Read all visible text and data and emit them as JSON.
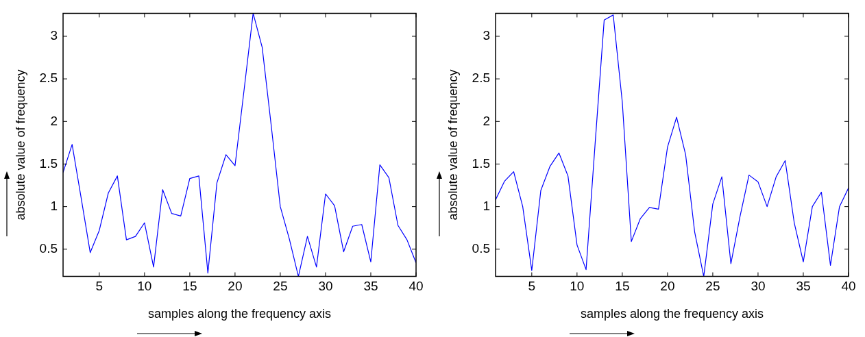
{
  "chart_data": [
    {
      "type": "line",
      "xlabel": "samples along the frequency axis",
      "ylabel": "absolute value of frequency",
      "x": [
        1,
        2,
        3,
        4,
        5,
        6,
        7,
        8,
        9,
        10,
        11,
        12,
        13,
        14,
        15,
        16,
        17,
        18,
        19,
        20,
        21,
        22,
        23,
        24,
        25,
        26,
        27,
        28,
        29,
        30,
        31,
        32,
        33,
        34,
        35,
        36,
        37,
        38,
        39,
        40
      ],
      "xlim": [
        1,
        40
      ],
      "xticks": [
        5,
        10,
        15,
        20,
        25,
        30,
        35,
        40
      ],
      "ylim": [
        0.18,
        3.27
      ],
      "yticks": [
        0.5,
        1,
        1.5,
        2,
        2.5,
        3
      ],
      "grid": false,
      "legend": false,
      "marker": "none",
      "line_style": "solid",
      "series": [
        {
          "color": "#0000ff",
          "values": [
            1.4,
            1.73,
            1.1,
            0.46,
            0.72,
            1.16,
            1.36,
            0.61,
            0.65,
            0.81,
            0.29,
            1.2,
            0.92,
            0.89,
            1.33,
            1.36,
            0.22,
            1.28,
            1.61,
            1.48,
            2.37,
            3.27,
            2.87,
            1.95,
            1.0,
            0.62,
            0.18,
            0.65,
            0.29,
            1.15,
            1.01,
            0.47,
            0.77,
            0.79,
            0.35,
            1.49,
            1.34,
            0.78,
            0.61,
            0.34
          ]
        }
      ]
    },
    {
      "type": "line",
      "xlabel": "samples along the frequency axis",
      "ylabel": "absolute value of frequency",
      "x": [
        1,
        2,
        3,
        4,
        5,
        6,
        7,
        8,
        9,
        10,
        11,
        12,
        13,
        14,
        15,
        16,
        17,
        18,
        19,
        20,
        21,
        22,
        23,
        24,
        25,
        26,
        27,
        28,
        29,
        30,
        31,
        32,
        33,
        34,
        35,
        36,
        37,
        38,
        39,
        40
      ],
      "xlim": [
        1,
        40
      ],
      "xticks": [
        5,
        10,
        15,
        20,
        25,
        30,
        35,
        40
      ],
      "ylim": [
        0.18,
        3.27
      ],
      "yticks": [
        0.5,
        1,
        1.5,
        2,
        2.5,
        3
      ],
      "grid": false,
      "legend": false,
      "marker": "none",
      "line_style": "solid",
      "series": [
        {
          "color": "#0000ff",
          "values": [
            1.08,
            1.3,
            1.41,
            1.0,
            0.25,
            1.19,
            1.47,
            1.63,
            1.36,
            0.55,
            0.26,
            1.74,
            3.19,
            3.25,
            2.23,
            0.59,
            0.86,
            0.99,
            0.97,
            1.7,
            2.05,
            1.61,
            0.7,
            0.18,
            1.03,
            1.35,
            0.33,
            0.88,
            1.37,
            1.29,
            1.0,
            1.35,
            1.54,
            0.81,
            0.35,
            1.0,
            1.17,
            0.31,
            1.0,
            1.22
          ]
        }
      ]
    }
  ]
}
